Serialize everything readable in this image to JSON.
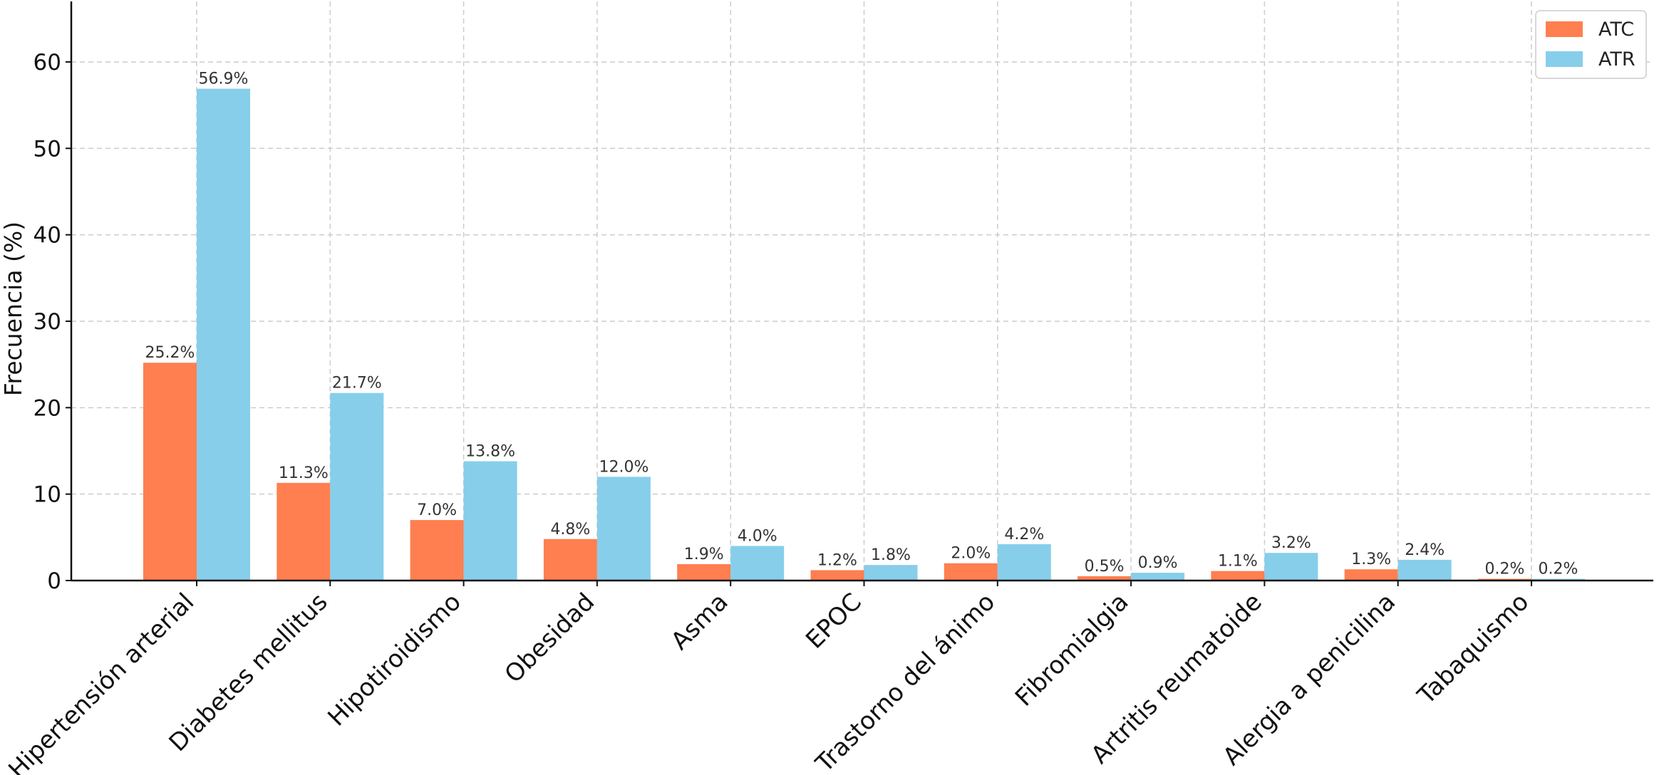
{
  "chart_data": {
    "type": "bar",
    "title": "",
    "xlabel": "",
    "ylabel": "Frecuencia (%)",
    "ylim": [
      0,
      67
    ],
    "yticks": [
      0,
      10,
      20,
      30,
      40,
      50,
      60
    ],
    "grid": true,
    "legend_position": "top-right",
    "categories": [
      "Hipertensión arterial",
      "Diabetes mellitus",
      "Hipotiroidismo",
      "Obesidad",
      "Asma",
      "EPOC",
      "Trastorno del ánimo",
      "Fibromialgia",
      "Artritis reumatoide",
      "Alergia a penicilina",
      "Tabaquismo"
    ],
    "series": [
      {
        "name": "ATC",
        "color": "#FF7F50",
        "values": [
          25.2,
          11.3,
          7.0,
          4.8,
          1.9,
          1.2,
          2.0,
          0.5,
          1.1,
          1.3,
          0.2
        ],
        "labels": [
          "25.2%",
          "11.3%",
          "7.0%",
          "4.8%",
          "1.9%",
          "1.2%",
          "2.0%",
          "0.5%",
          "1.1%",
          "1.3%",
          "0.2%"
        ]
      },
      {
        "name": "ATR",
        "color": "#87CEEB",
        "values": [
          56.9,
          21.7,
          13.8,
          12.0,
          4.0,
          1.8,
          4.2,
          0.9,
          3.2,
          2.4,
          0.2
        ],
        "labels": [
          "56.9%",
          "21.7%",
          "13.8%",
          "12.0%",
          "4.0%",
          "1.8%",
          "4.2%",
          "0.9%",
          "3.2%",
          "2.4%",
          "0.2%"
        ]
      }
    ]
  }
}
